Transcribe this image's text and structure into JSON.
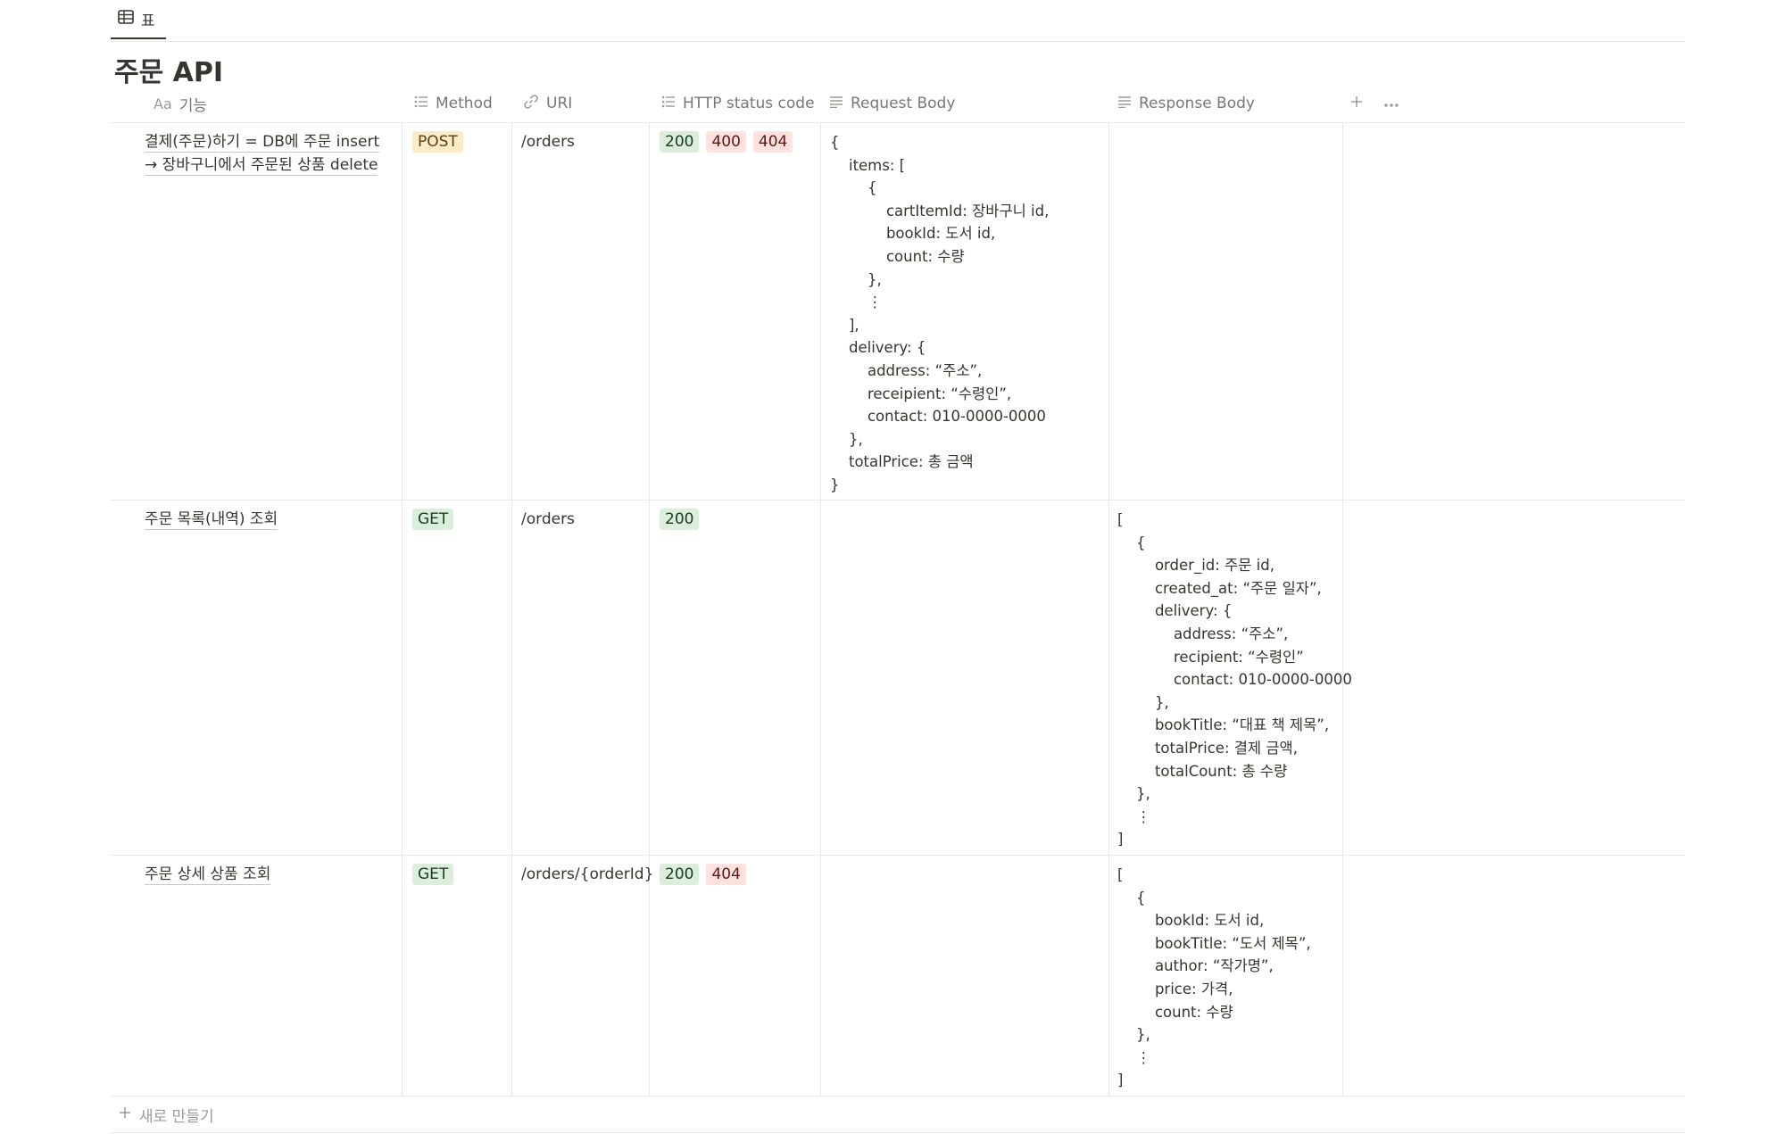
{
  "view_tab": {
    "label": "표"
  },
  "page": {
    "title": "주문 API"
  },
  "columns": {
    "name": "기능",
    "method": "Method",
    "uri": "URI",
    "status": "HTTP status code",
    "request": "Request Body",
    "response": "Response Body"
  },
  "rows": [
    {
      "name_line1": "결제(주문)하기 = DB에 주문 insert",
      "name_line2": "→ 장바구니에서 주문된 상품 delete",
      "method": "POST",
      "uri": "/orders",
      "statuses": [
        "200",
        "400",
        "404"
      ],
      "request_body": "{\n    items: [\n        {\n            cartItemId: 장바구니 id,\n            bookId: 도서 id,\n            count: 수량\n        },\n        ⋮\n    ],\n    delivery: {\n        address: “주소”,\n        receipient: “수령인”,\n        contact: 010-0000-0000\n    },\n    totalPrice: 총 금액\n}",
      "response_body": ""
    },
    {
      "name_line1": "주문 목록(내역) 조회",
      "method": "GET",
      "uri": "/orders",
      "statuses": [
        "200"
      ],
      "request_body": "",
      "response_body": "[\n    {\n        order_id: 주문 id,\n        created_at: “주문 일자”,\n        delivery: {\n            address: “주소”,\n            recipient: “수령인”\n            contact: 010-0000-0000\n        },\n        bookTitle: “대표 책 제목”,\n        totalPrice: 결제 금액,\n        totalCount: 총 수량\n    },\n    ⋮\n]"
    },
    {
      "name_line1": "주문 상세 상품 조회",
      "method": "GET",
      "uri": "/orders/{orderId}",
      "statuses": [
        "200",
        "404"
      ],
      "request_body": "",
      "response_body": "[\n    {\n        bookId: 도서 id,\n        bookTitle: “도서 제목”,\n        author: “작가명”,\n        price: 가격,\n        count: 수량\n    },\n    ⋮\n]"
    }
  ],
  "new_row": {
    "label": "새로 만들기"
  },
  "colors": {
    "post_bg": "#fbecc9",
    "get_bg": "#dbeddb",
    "ok_bg": "#dbeddb",
    "err_bg": "#ffe2dd"
  },
  "icons": {
    "view": "table-icon",
    "name_col": "title-text-icon",
    "method_col": "list-icon",
    "uri_col": "link-icon",
    "status_col": "list-icon",
    "request_col": "text-lines-icon",
    "response_col": "text-lines-icon",
    "add_col": "plus-icon",
    "more": "more-horizontal-icon",
    "new_row": "plus-icon"
  }
}
